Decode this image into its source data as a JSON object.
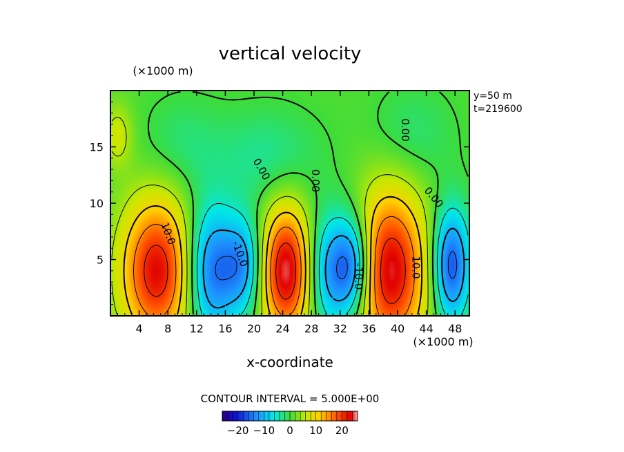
{
  "chart_data": {
    "type": "heatmap",
    "title": "vertical velocity",
    "xlabel": "x-coordinate",
    "x_unit": "(×1000 m)",
    "y_unit": "(×1000 m)",
    "annotation": [
      "y=50 m",
      "t=219600"
    ],
    "contour_interval_label": "CONTOUR INTERVAL = 5.000E+00",
    "contour_labels": [
      "10.0",
      "-10.0",
      "0.00"
    ],
    "xlim": [
      0,
      50
    ],
    "ylim": [
      0,
      20
    ],
    "x_ticks": [
      4,
      8,
      12,
      16,
      20,
      24,
      28,
      32,
      36,
      40,
      44,
      48
    ],
    "y_ticks": [
      5,
      10,
      15
    ],
    "colorbar": {
      "range": [
        -26,
        26
      ],
      "ticks": [
        -20,
        -10,
        0,
        10,
        20
      ],
      "tick_labels": [
        "−20",
        "−10",
        "0",
        "10",
        "20"
      ]
    },
    "cells": [
      {
        "x": 6.5,
        "y": 4.0,
        "value": 22,
        "sx": 3.5,
        "sy": 4.5
      },
      {
        "x": 14.0,
        "y": 4.0,
        "value": -16,
        "sx": 2.5,
        "sy": 4.0
      },
      {
        "x": 18.5,
        "y": 4.5,
        "value": -12,
        "sx": 2.0,
        "sy": 3.0
      },
      {
        "x": 24.5,
        "y": 4.0,
        "value": 24,
        "sx": 2.5,
        "sy": 4.0
      },
      {
        "x": 31.0,
        "y": 4.0,
        "value": -14,
        "sx": 2.5,
        "sy": 3.5
      },
      {
        "x": 34.0,
        "y": 4.5,
        "value": -13,
        "sx": 1.8,
        "sy": 3.0
      },
      {
        "x": 39.0,
        "y": 4.0,
        "value": 23,
        "sx": 3.5,
        "sy": 5.0
      },
      {
        "x": 47.5,
        "y": 4.5,
        "value": -18,
        "sx": 1.8,
        "sy": 3.5
      },
      {
        "x": 1.0,
        "y": 16.0,
        "value": 6,
        "sx": 1.5,
        "sy": 2.0
      },
      {
        "x": 22.0,
        "y": 14.0,
        "value": -4,
        "sx": 5.0,
        "sy": 3.0
      },
      {
        "x": 42.0,
        "y": 16.0,
        "value": -3,
        "sx": 4.0,
        "sy": 3.0
      },
      {
        "x": 10.0,
        "y": 15.0,
        "value": -3,
        "sx": 4.0,
        "sy": 3.0
      }
    ]
  }
}
